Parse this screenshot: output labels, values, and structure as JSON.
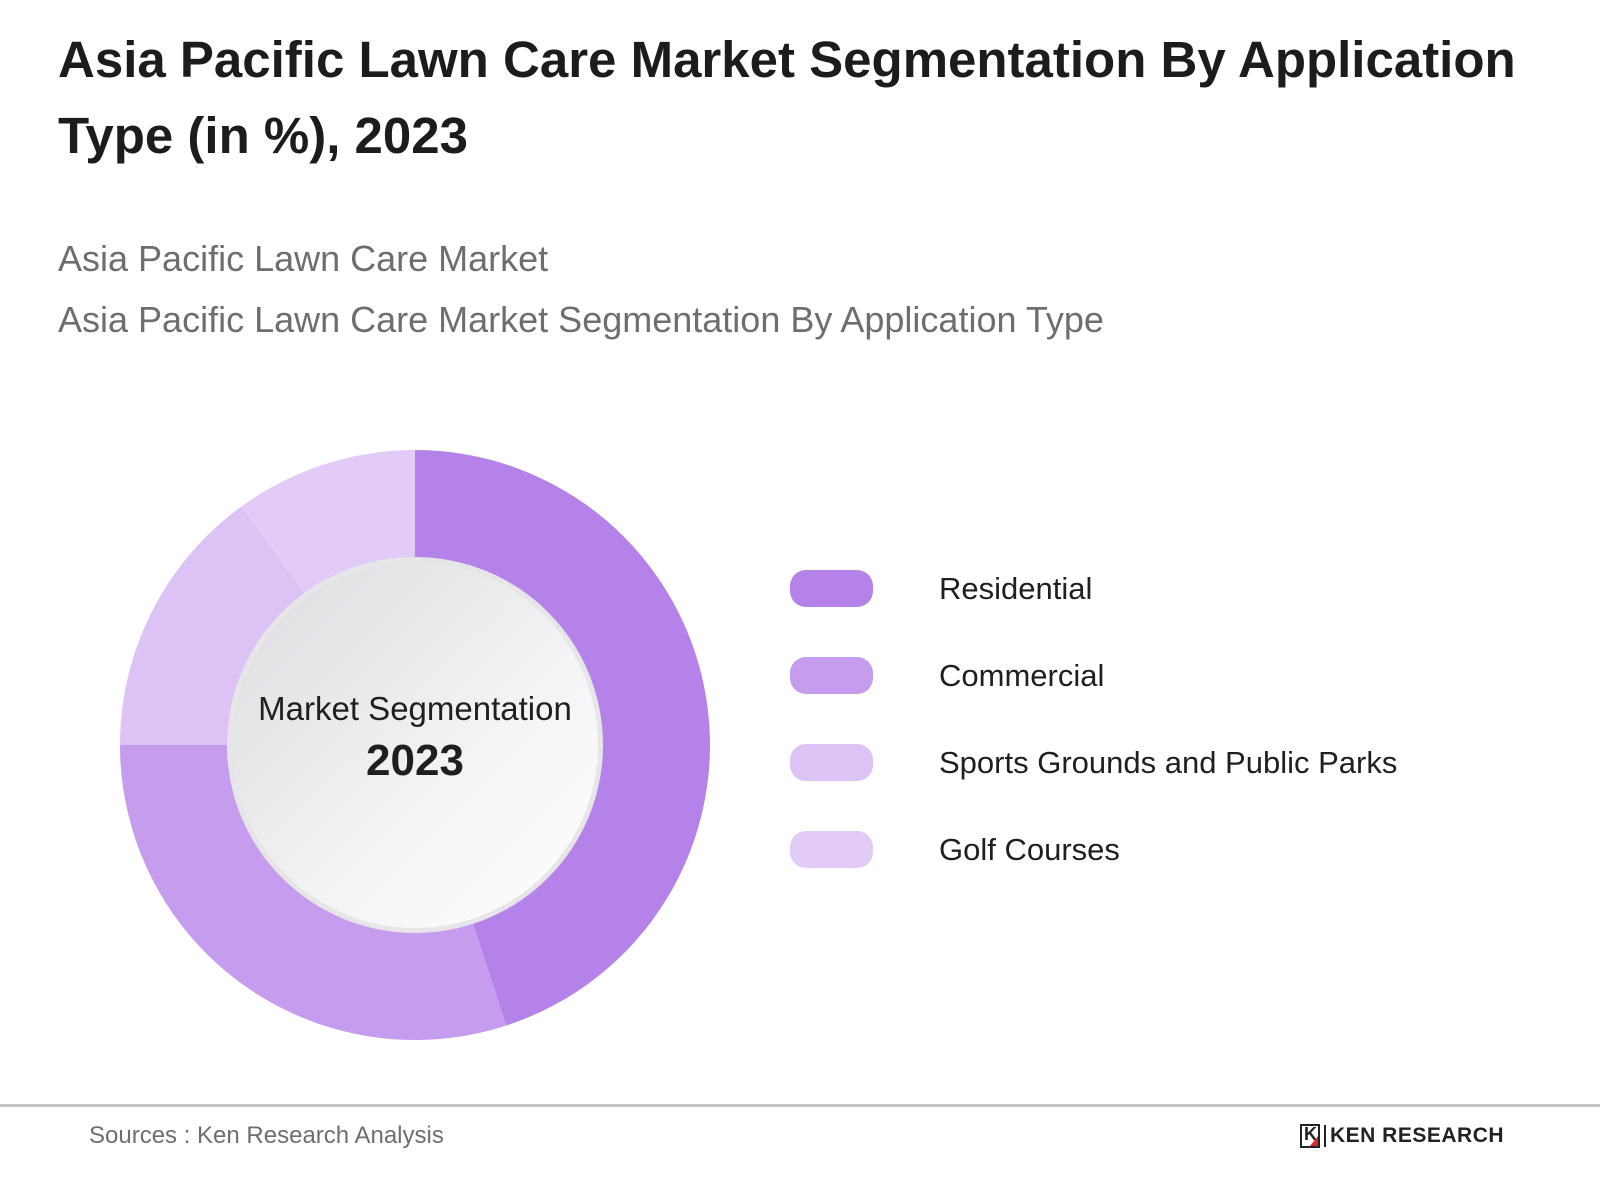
{
  "header": {
    "title": "Asia Pacific Lawn Care Market Segmentation By Application Type (in %), 2023",
    "subtitle_1": "Asia Pacific Lawn Care Market",
    "subtitle_2": "Asia Pacific Lawn Care Market Segmentation By Application Type"
  },
  "center": {
    "label": "Market Segmentation",
    "year": "2023"
  },
  "legend": {
    "items": [
      {
        "label": "Residential",
        "color": "#b582ea"
      },
      {
        "label": "Commercial",
        "color": "#c69cee"
      },
      {
        "label": "Sports Grounds and Public Parks",
        "color": "#ddc2f6"
      },
      {
        "label": "Golf Courses",
        "color": "#e2cbf7"
      }
    ]
  },
  "footer": {
    "source": "Sources : Ken Research Analysis",
    "logo_text": "KEN RESEARCH",
    "logo_mark": "K"
  },
  "chart_data": {
    "type": "pie",
    "subtype": "donut",
    "title": "Asia Pacific Lawn Care Market Segmentation By Application Type (in %), 2023",
    "subtitle": [
      "Asia Pacific Lawn Care Market",
      "Asia Pacific Lawn Care Market Segmentation By Application Type"
    ],
    "categories": [
      "Residential",
      "Commercial",
      "Sports Grounds and Public Parks",
      "Golf Courses"
    ],
    "values": [
      45,
      30,
      15,
      10
    ],
    "colors": [
      "#b582ea",
      "#c69cee",
      "#ddc2f6",
      "#e2cbf7"
    ],
    "center_text": [
      "Market Segmentation",
      "2023"
    ],
    "legend_position": "right",
    "start_angle": "12 o'clock, clockwise",
    "unit": "%"
  }
}
